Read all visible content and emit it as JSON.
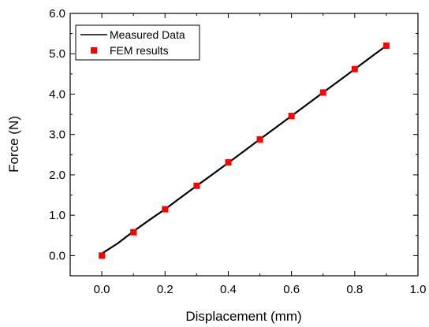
{
  "chart_data": {
    "type": "scatter",
    "xlabel": "Displacement (mm)",
    "ylabel": "Force (N)",
    "xlim": [
      -0.1,
      1.0
    ],
    "ylim": [
      -0.5,
      6.0
    ],
    "x_ticks": [
      "0.0",
      "0.2",
      "0.4",
      "0.6",
      "0.8",
      "1.0"
    ],
    "y_ticks": [
      "0.0",
      "1.0",
      "2.0",
      "3.0",
      "4.0",
      "5.0",
      "6.0"
    ],
    "grid": false,
    "legend_position": "top-left",
    "series": [
      {
        "name": "Measured Data",
        "kind": "line",
        "color": "#000000",
        "x": [
          0.0,
          0.05,
          0.1,
          0.15,
          0.2,
          0.25,
          0.3,
          0.35,
          0.4,
          0.45,
          0.5,
          0.55,
          0.6,
          0.65,
          0.7,
          0.75,
          0.8,
          0.85,
          0.9
        ],
        "y": [
          0.05,
          0.3,
          0.6,
          0.88,
          1.15,
          1.44,
          1.73,
          2.01,
          2.3,
          2.59,
          2.88,
          3.17,
          3.46,
          3.75,
          4.04,
          4.33,
          4.62,
          4.91,
          5.2
        ]
      },
      {
        "name": "FEM results",
        "kind": "scatter",
        "color": "#ff0000",
        "marker": "square",
        "x": [
          0.0,
          0.1,
          0.2,
          0.3,
          0.4,
          0.5,
          0.6,
          0.7,
          0.8,
          0.9
        ],
        "y": [
          0.0,
          0.58,
          1.15,
          1.73,
          2.31,
          2.88,
          3.46,
          4.04,
          4.62,
          5.2
        ]
      }
    ]
  }
}
